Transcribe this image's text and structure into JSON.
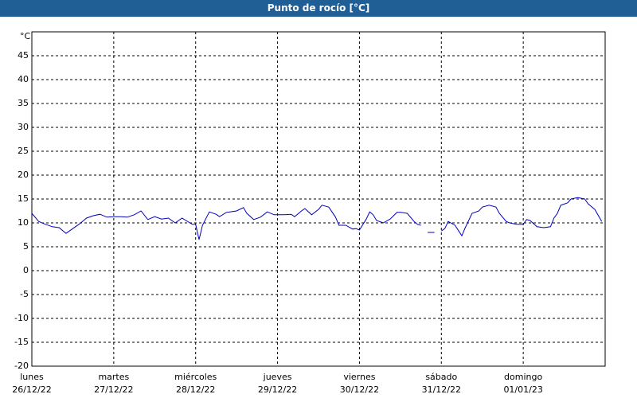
{
  "chart_data": {
    "type": "line",
    "title": "Punto de rocío [°C]",
    "y_label": "°C",
    "ylim": [
      -20,
      50
    ],
    "yticks": [
      -20,
      -15,
      -10,
      -5,
      0,
      5,
      10,
      15,
      20,
      25,
      30,
      35,
      40,
      45
    ],
    "xlim": [
      0,
      168
    ],
    "xticks": [
      {
        "value": 0,
        "label": [
          "lunes",
          "26/12/22"
        ]
      },
      {
        "value": 24,
        "label": [
          "martes",
          "27/12/22"
        ]
      },
      {
        "value": 48,
        "label": [
          "miércoles",
          "28/12/22"
        ]
      },
      {
        "value": 72,
        "label": [
          "jueves",
          "29/12/22"
        ]
      },
      {
        "value": 96,
        "label": [
          "viernes",
          "30/12/22"
        ]
      },
      {
        "value": 120,
        "label": [
          "sábado",
          "31/12/22"
        ]
      },
      {
        "value": 144,
        "label": [
          "domingo",
          "01/01/23"
        ]
      }
    ],
    "grid": true,
    "series": [
      {
        "color": "#0000c0",
        "x": [
          0,
          2,
          4,
          6,
          8,
          10,
          12,
          14,
          16,
          18,
          20,
          22,
          24,
          26,
          28,
          30,
          32,
          34,
          36,
          38,
          40,
          42,
          44,
          47,
          48,
          49,
          50,
          52,
          54,
          55,
          57,
          58,
          60,
          62,
          63,
          65,
          67,
          69,
          71,
          72,
          74,
          76,
          77,
          79,
          80,
          82,
          84,
          85,
          87,
          89,
          90,
          92,
          94,
          95,
          96,
          98,
          99,
          100,
          101,
          103,
          105,
          107,
          108,
          110,
          112,
          113,
          114,
          115,
          116,
          118,
          119,
          120,
          121,
          122,
          124,
          126,
          127,
          129,
          131,
          132,
          134,
          136,
          137,
          139,
          140,
          142,
          144,
          145,
          146,
          148,
          150,
          152,
          153,
          154,
          155,
          157,
          158,
          160,
          162,
          163,
          165,
          167
        ],
        "values": [
          12.0,
          10.3,
          9.7,
          9.2,
          9.0,
          7.8,
          8.8,
          9.8,
          11.0,
          11.5,
          11.8,
          11.2,
          11.3,
          11.3,
          11.2,
          11.7,
          12.5,
          10.7,
          11.3,
          10.8,
          11.0,
          10.0,
          11.0,
          9.7,
          9.7,
          6.5,
          9.5,
          12.3,
          11.8,
          11.3,
          12.2,
          12.3,
          12.5,
          13.2,
          12.0,
          10.7,
          11.2,
          12.3,
          11.7,
          11.7,
          11.7,
          11.8,
          11.3,
          12.5,
          13.0,
          11.7,
          12.8,
          13.7,
          13.3,
          11.2,
          9.5,
          9.5,
          8.7,
          8.8,
          8.5,
          10.8,
          12.3,
          11.7,
          10.5,
          10.0,
          10.8,
          12.2,
          12.2,
          12.0,
          10.3,
          9.7,
          9.5,
          null,
          8.0,
          8.0,
          null,
          8.3,
          8.8,
          10.3,
          9.5,
          7.3,
          9.0,
          12.0,
          12.5,
          13.3,
          13.7,
          13.3,
          12.0,
          10.3,
          10.0,
          9.7,
          9.7,
          10.7,
          10.5,
          9.2,
          9.0,
          9.2,
          11.0,
          12.0,
          13.7,
          14.2,
          15.0,
          15.3,
          15.0,
          14.0,
          12.8,
          10.3
        ]
      }
    ]
  }
}
